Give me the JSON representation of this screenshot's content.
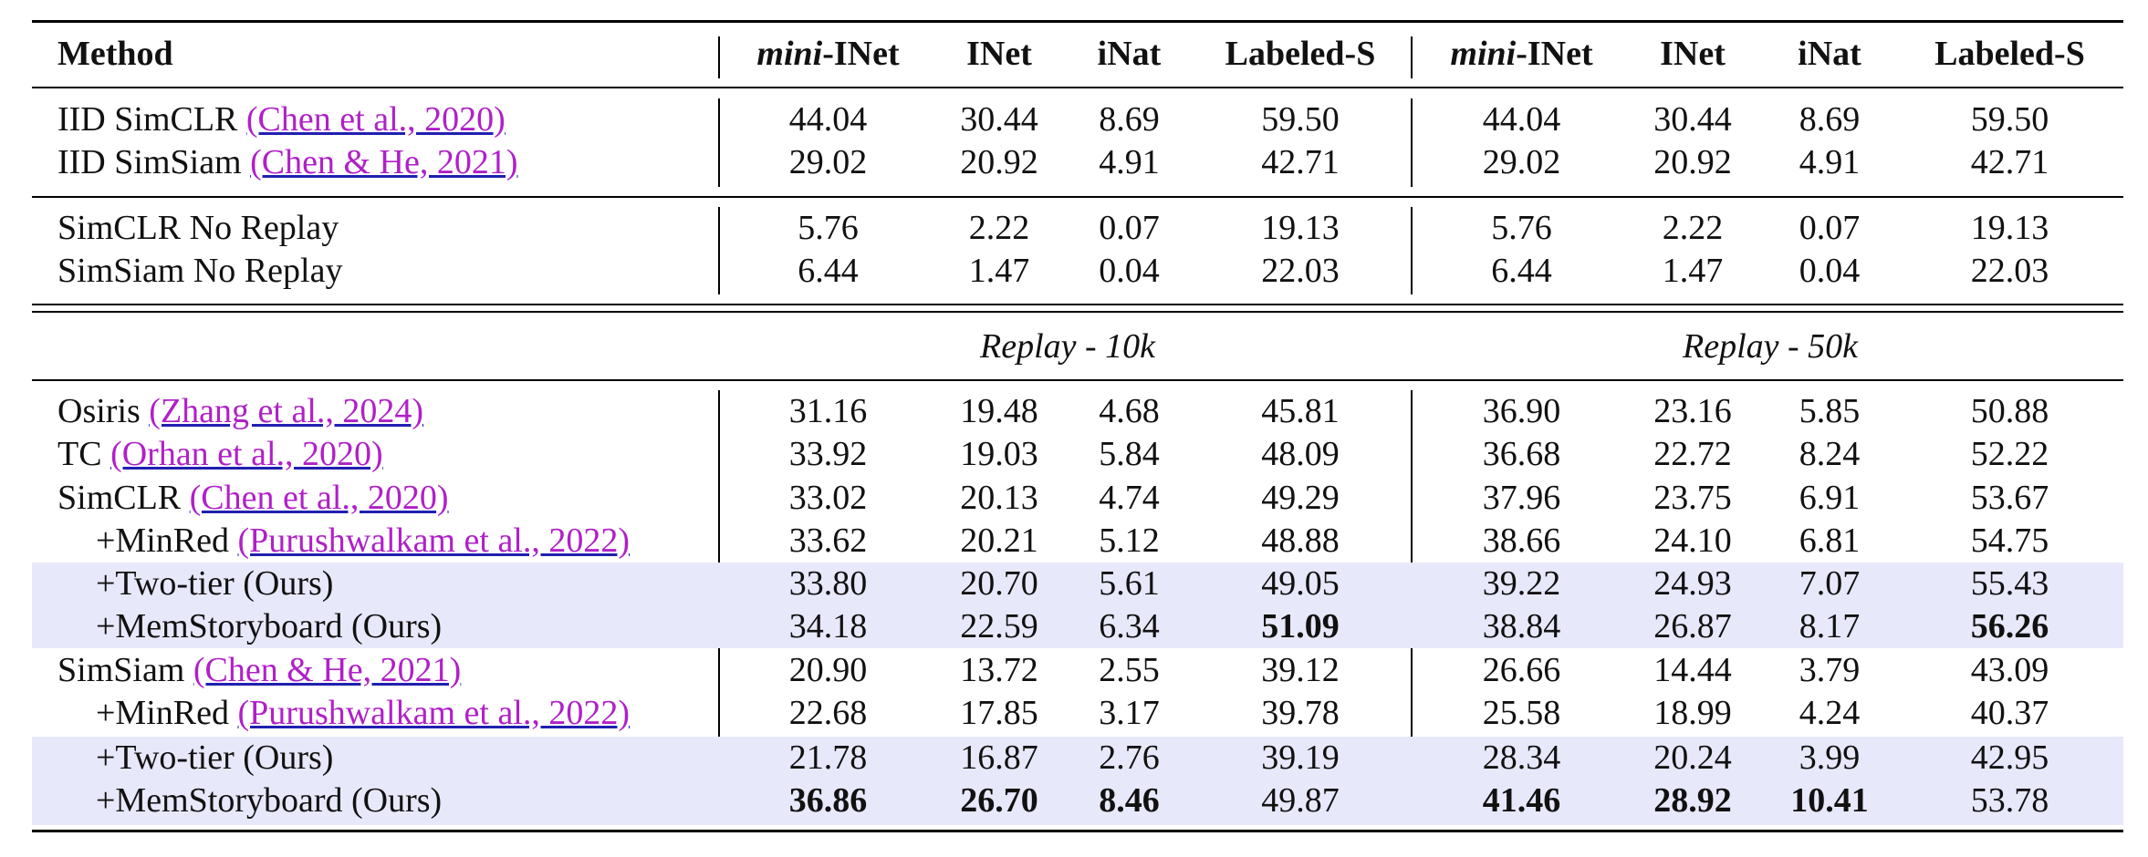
{
  "columns": {
    "method": "Method",
    "left": [
      {
        "pre": "mini",
        "post": "-INet"
      },
      {
        "pre": "",
        "post": "INet"
      },
      {
        "pre": "",
        "post": "iNat"
      },
      {
        "pre": "",
        "post": "Labeled-S"
      }
    ],
    "right": [
      {
        "pre": "mini",
        "post": "-INet"
      },
      {
        "pre": "",
        "post": "INet"
      },
      {
        "pre": "",
        "post": "iNat"
      },
      {
        "pre": "",
        "post": "Labeled-S"
      }
    ]
  },
  "sections": {
    "left_title": "Replay - 10k",
    "right_title": "Replay - 50k"
  },
  "rows": [
    {
      "name": "IID SimCLR ",
      "cite": "(Chen et al., 2020)",
      "v": [
        "44.04",
        "30.44",
        "8.69",
        "59.50",
        "44.04",
        "30.44",
        "8.69",
        "59.50"
      ]
    },
    {
      "name": "IID SimSiam ",
      "cite": "(Chen & He, 2021)",
      "v": [
        "29.02",
        "20.92",
        "4.91",
        "42.71",
        "29.02",
        "20.92",
        "4.91",
        "42.71"
      ]
    },
    {
      "name": "SimCLR No Replay",
      "cite": "",
      "v": [
        "5.76",
        "2.22",
        "0.07",
        "19.13",
        "5.76",
        "2.22",
        "0.07",
        "19.13"
      ]
    },
    {
      "name": "SimSiam No Replay",
      "cite": "",
      "v": [
        "6.44",
        "1.47",
        "0.04",
        "22.03",
        "6.44",
        "1.47",
        "0.04",
        "22.03"
      ]
    },
    {
      "name": "Osiris ",
      "cite": "(Zhang et al., 2024)",
      "v": [
        "31.16",
        "19.48",
        "4.68",
        "45.81",
        "36.90",
        "23.16",
        "5.85",
        "50.88"
      ]
    },
    {
      "name": "TC ",
      "cite": "(Orhan et al., 2020)",
      "v": [
        "33.92",
        "19.03",
        "5.84",
        "48.09",
        "36.68",
        "22.72",
        "8.24",
        "52.22"
      ]
    },
    {
      "name": "SimCLR ",
      "cite": "(Chen et al., 2020)",
      "v": [
        "33.02",
        "20.13",
        "4.74",
        "49.29",
        "37.96",
        "23.75",
        "6.91",
        "53.67"
      ]
    },
    {
      "name": "+MinRed ",
      "cite": "(Purushwalkam et al., 2022)",
      "v": [
        "33.62",
        "20.21",
        "5.12",
        "48.88",
        "38.66",
        "24.10",
        "6.81",
        "54.75"
      ]
    },
    {
      "name": "+Two-tier (Ours)",
      "cite": "",
      "v": [
        "33.80",
        "20.70",
        "5.61",
        "49.05",
        "39.22",
        "24.93",
        "7.07",
        "55.43"
      ]
    },
    {
      "name": "+MemStoryboard (Ours)",
      "cite": "",
      "v": [
        "34.18",
        "22.59",
        "6.34",
        "51.09",
        "38.84",
        "26.87",
        "8.17",
        "56.26"
      ]
    },
    {
      "name": "SimSiam ",
      "cite": "(Chen & He, 2021)",
      "v": [
        "20.90",
        "13.72",
        "2.55",
        "39.12",
        "26.66",
        "14.44",
        "3.79",
        "43.09"
      ]
    },
    {
      "name": "+MinRed ",
      "cite": "(Purushwalkam et al., 2022)",
      "v": [
        "22.68",
        "17.85",
        "3.17",
        "39.78",
        "25.58",
        "18.99",
        "4.24",
        "40.37"
      ]
    },
    {
      "name": "+Two-tier (Ours)",
      "cite": "",
      "v": [
        "21.78",
        "16.87",
        "2.76",
        "39.19",
        "28.34",
        "20.24",
        "3.99",
        "42.95"
      ]
    },
    {
      "name": "+MemStoryboard (Ours)",
      "cite": "",
      "v": [
        "36.86",
        "26.70",
        "8.46",
        "49.87",
        "41.46",
        "28.92",
        "10.41",
        "53.78"
      ]
    }
  ]
}
